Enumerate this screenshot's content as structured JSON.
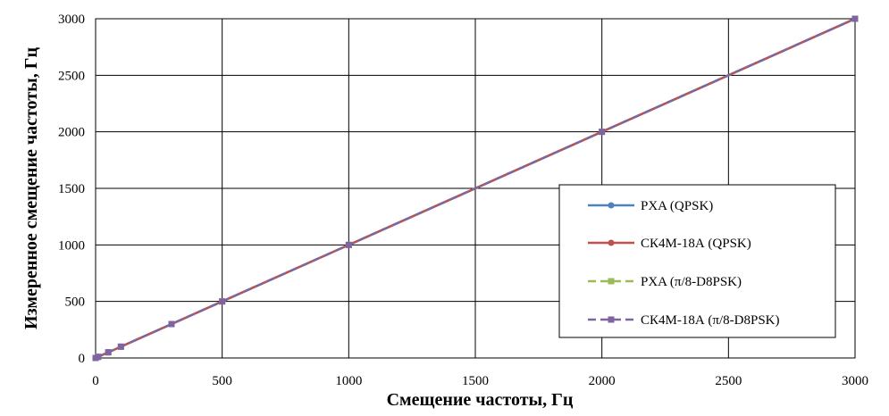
{
  "chart_data": {
    "type": "line",
    "title": "",
    "xlabel": "Смещение частоты, Гц",
    "ylabel": "Измеренное смещение частоты, Гц",
    "xlim": [
      0,
      3000
    ],
    "ylim": [
      0,
      3000
    ],
    "xticks": [
      "0",
      "500",
      "1000",
      "1500",
      "2000",
      "2500",
      "3000"
    ],
    "yticks": [
      "0",
      "500",
      "1000",
      "1500",
      "2000",
      "2500",
      "3000"
    ],
    "grid": true,
    "legend_position": "right",
    "x": [
      0,
      10,
      50,
      100,
      300,
      500,
      1000,
      2000,
      3000
    ],
    "series": [
      {
        "name": "PXA (QPSK)",
        "color": "#4f81bd",
        "marker": "circle",
        "dash": "solid",
        "values": [
          0,
          10,
          50,
          100,
          300,
          500,
          1000,
          2000,
          3000
        ]
      },
      {
        "name": "СК4М-18А (QPSK)",
        "color": "#c0504d",
        "marker": "circle",
        "dash": "solid",
        "values": [
          0,
          10,
          50,
          100,
          300,
          500,
          1000,
          2000,
          3000
        ]
      },
      {
        "name": "PXA (π/8-D8PSK)",
        "color": "#9bbb59",
        "marker": "square",
        "dash": "dashed",
        "values": [
          0,
          10,
          50,
          100,
          300,
          500,
          1000,
          2000,
          3000
        ]
      },
      {
        "name": "СК4М-18А (π/8-D8PSK)",
        "color": "#8064a2",
        "marker": "square",
        "dash": "dashed",
        "values": [
          0,
          10,
          50,
          100,
          300,
          500,
          1000,
          2000,
          3000
        ]
      }
    ]
  }
}
